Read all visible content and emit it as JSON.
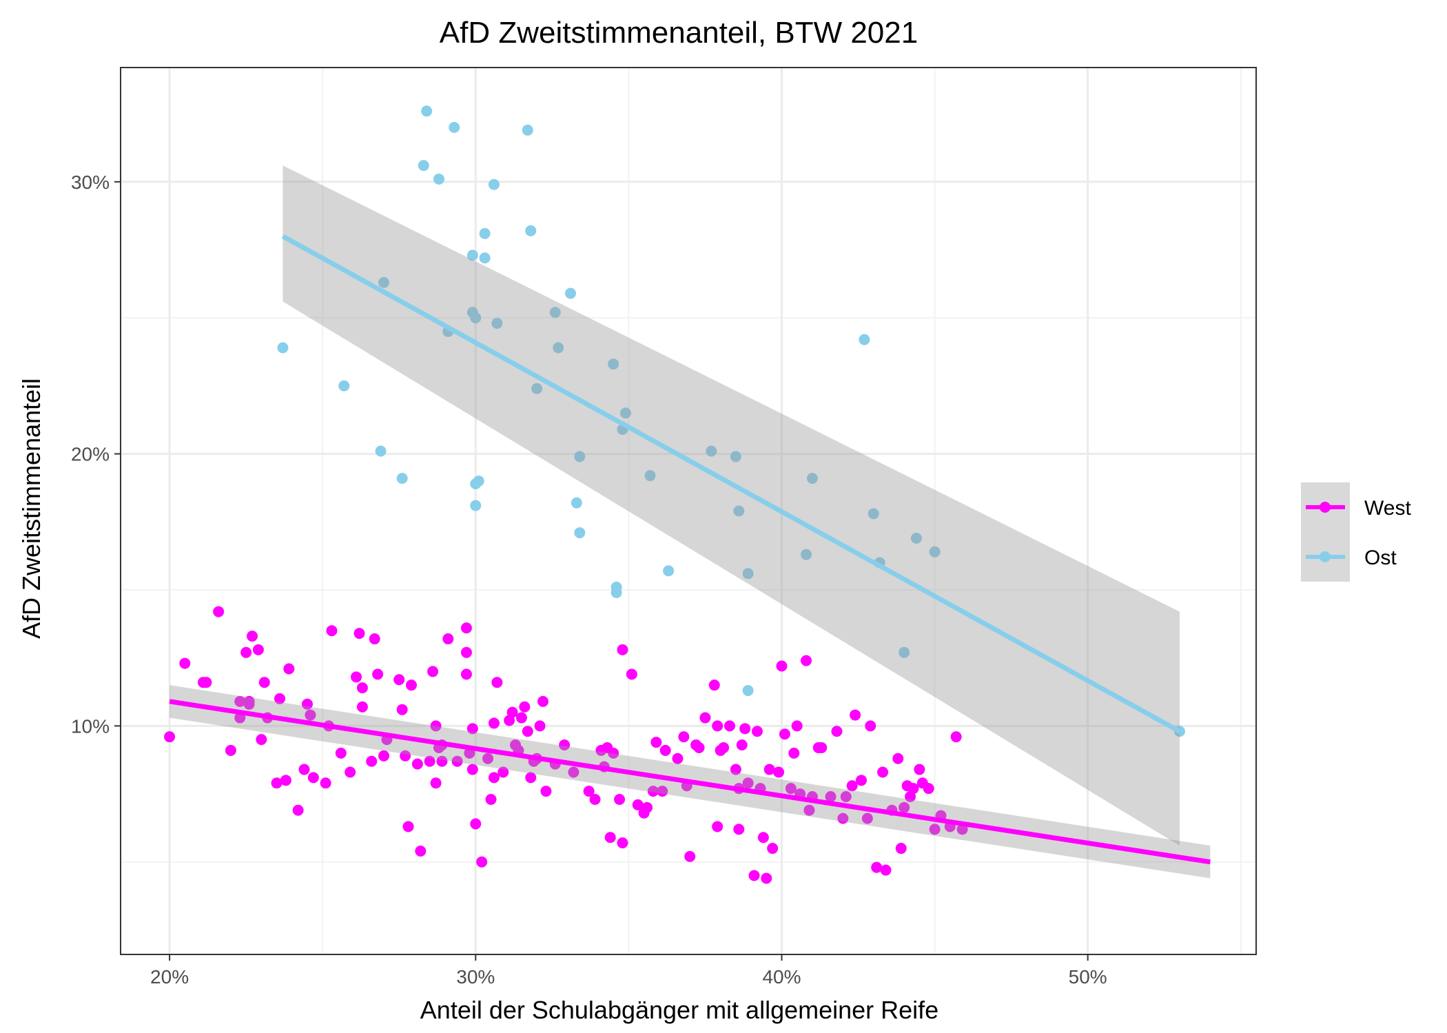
{
  "chart_data": {
    "type": "scatter",
    "title": "AfD Zweitstimmenanteil, BTW 2021",
    "xlabel": "Anteil der Schulabgänger mit allgemeiner Reife",
    "ylabel": "AfD Zweitstimmenanteil",
    "xlim": [
      18.4,
      55.5
    ],
    "ylim": [
      1.6,
      34.2
    ],
    "x_ticks": [
      20,
      30,
      40,
      50
    ],
    "x_tick_labels": [
      "20%",
      "30%",
      "40%",
      "50%"
    ],
    "y_ticks": [
      10,
      20,
      30
    ],
    "y_tick_labels": [
      "10%",
      "20%",
      "30%"
    ],
    "grid": true,
    "legend_position": "right",
    "colors": {
      "West": "#ff00ff",
      "Ost": "#87ceeb",
      "band": "#999999"
    },
    "series": [
      {
        "name": "West",
        "color": "#ff00ff",
        "trend": {
          "x": [
            20,
            54
          ],
          "y": [
            10.9,
            5.0
          ],
          "lower": [
            10.3,
            4.4
          ],
          "upper": [
            11.5,
            5.6
          ]
        },
        "points": [
          [
            20,
            9.6
          ],
          [
            20.5,
            12.3
          ],
          [
            21.1,
            11.6
          ],
          [
            21.2,
            11.6
          ],
          [
            21.6,
            14.2
          ],
          [
            22,
            9.1
          ],
          [
            22.3,
            10.9
          ],
          [
            22.3,
            10.3
          ],
          [
            22.5,
            12.7
          ],
          [
            22.6,
            10.9
          ],
          [
            22.6,
            10.8
          ],
          [
            22.7,
            13.3
          ],
          [
            22.9,
            12.8
          ],
          [
            23,
            9.5
          ],
          [
            23.1,
            11.6
          ],
          [
            23.2,
            10.3
          ],
          [
            23.5,
            7.9
          ],
          [
            23.6,
            11
          ],
          [
            23.8,
            8
          ],
          [
            23.9,
            12.1
          ],
          [
            24.2,
            6.9
          ],
          [
            24.4,
            8.4
          ],
          [
            24.5,
            10.8
          ],
          [
            24.6,
            10.4
          ],
          [
            24.7,
            8.1
          ],
          [
            25.1,
            7.9
          ],
          [
            25.2,
            10
          ],
          [
            25.3,
            13.5
          ],
          [
            25.6,
            9
          ],
          [
            25.9,
            8.3
          ],
          [
            26.1,
            11.8
          ],
          [
            26.2,
            13.4
          ],
          [
            26.3,
            10.7
          ],
          [
            26.3,
            11.4
          ],
          [
            26.6,
            8.7
          ],
          [
            26.7,
            13.2
          ],
          [
            26.8,
            11.9
          ],
          [
            27,
            8.9
          ],
          [
            27.1,
            9.5
          ],
          [
            27.5,
            11.7
          ],
          [
            27.6,
            10.6
          ],
          [
            27.7,
            8.9
          ],
          [
            27.8,
            6.3
          ],
          [
            27.9,
            11.5
          ],
          [
            28.1,
            8.6
          ],
          [
            28.2,
            5.4
          ],
          [
            28.5,
            8.7
          ],
          [
            28.6,
            12
          ],
          [
            28.7,
            7.9
          ],
          [
            28.7,
            10
          ],
          [
            28.8,
            9.2
          ],
          [
            28.9,
            8.7
          ],
          [
            28.9,
            9.3
          ],
          [
            29.1,
            13.2
          ],
          [
            29.4,
            8.7
          ],
          [
            29.7,
            12.7
          ],
          [
            29.7,
            11.9
          ],
          [
            29.7,
            13.6
          ],
          [
            29.8,
            9
          ],
          [
            29.9,
            9.9
          ],
          [
            29.9,
            8.4
          ],
          [
            30,
            6.4
          ],
          [
            30.2,
            5.0
          ],
          [
            30.4,
            8.8
          ],
          [
            30.5,
            7.3
          ],
          [
            30.6,
            8.1
          ],
          [
            30.6,
            10.1
          ],
          [
            30.7,
            11.6
          ],
          [
            30.9,
            8.3
          ],
          [
            31.1,
            10.2
          ],
          [
            31.2,
            10.5
          ],
          [
            31.3,
            9.3
          ],
          [
            31.4,
            9.1
          ],
          [
            31.5,
            10.3
          ],
          [
            31.6,
            10.7
          ],
          [
            31.7,
            9.8
          ],
          [
            31.8,
            8.1
          ],
          [
            31.9,
            8.7
          ],
          [
            32,
            8.8
          ],
          [
            32.1,
            10
          ],
          [
            32.2,
            10.9
          ],
          [
            32.3,
            7.6
          ],
          [
            32.6,
            8.6
          ],
          [
            32.9,
            9.3
          ],
          [
            33.2,
            8.3
          ],
          [
            33.7,
            7.6
          ],
          [
            33.9,
            7.3
          ],
          [
            34.1,
            9.1
          ],
          [
            34.2,
            8.5
          ],
          [
            34.3,
            9.2
          ],
          [
            34.4,
            5.9
          ],
          [
            34.5,
            9
          ],
          [
            34.7,
            7.3
          ],
          [
            34.8,
            12.8
          ],
          [
            34.8,
            5.7
          ],
          [
            35.1,
            11.9
          ],
          [
            35.3,
            7.1
          ],
          [
            35.5,
            6.8
          ],
          [
            35.6,
            7.0
          ],
          [
            35.8,
            7.6
          ],
          [
            35.9,
            9.4
          ],
          [
            36.1,
            7.6
          ],
          [
            36.2,
            9.1
          ],
          [
            36.6,
            8.8
          ],
          [
            36.8,
            9.6
          ],
          [
            36.9,
            7.8
          ],
          [
            37.0,
            5.2
          ],
          [
            37.2,
            9.3
          ],
          [
            37.3,
            9.2
          ],
          [
            37.5,
            10.3
          ],
          [
            37.8,
            11.5
          ],
          [
            37.9,
            6.3
          ],
          [
            37.9,
            10
          ],
          [
            38.0,
            9.1
          ],
          [
            38.1,
            9.2
          ],
          [
            38.3,
            10
          ],
          [
            38.5,
            8.4
          ],
          [
            38.6,
            7.7
          ],
          [
            38.6,
            6.2
          ],
          [
            38.7,
            9.3
          ],
          [
            38.8,
            9.9
          ],
          [
            38.9,
            7.9
          ],
          [
            39.1,
            4.5
          ],
          [
            39.2,
            9.8
          ],
          [
            39.3,
            7.7
          ],
          [
            39.4,
            5.9
          ],
          [
            39.5,
            4.4
          ],
          [
            39.6,
            8.4
          ],
          [
            39.7,
            5.5
          ],
          [
            39.9,
            8.3
          ],
          [
            40.0,
            12.2
          ],
          [
            40.1,
            9.7
          ],
          [
            40.3,
            7.7
          ],
          [
            40.4,
            9.0
          ],
          [
            40.5,
            10.0
          ],
          [
            40.6,
            7.5
          ],
          [
            40.8,
            12.4
          ],
          [
            40.9,
            6.9
          ],
          [
            41.0,
            7.4
          ],
          [
            41.2,
            9.2
          ],
          [
            41.3,
            9.2
          ],
          [
            41.6,
            7.4
          ],
          [
            41.8,
            9.8
          ],
          [
            42.0,
            6.6
          ],
          [
            42.1,
            7.4
          ],
          [
            42.3,
            7.8
          ],
          [
            42.4,
            10.4
          ],
          [
            42.6,
            8.0
          ],
          [
            42.8,
            6.6
          ],
          [
            42.9,
            10.0
          ],
          [
            43.1,
            4.8
          ],
          [
            43.3,
            8.3
          ],
          [
            43.4,
            4.7
          ],
          [
            43.6,
            6.9
          ],
          [
            43.8,
            8.8
          ],
          [
            43.9,
            5.5
          ],
          [
            44.0,
            7.0
          ],
          [
            44.1,
            7.8
          ],
          [
            44.2,
            7.4
          ],
          [
            44.3,
            7.7
          ],
          [
            44.5,
            8.4
          ],
          [
            44.6,
            7.9
          ],
          [
            44.8,
            7.7
          ],
          [
            45.0,
            6.2
          ],
          [
            45.2,
            6.7
          ],
          [
            45.5,
            6.3
          ],
          [
            45.7,
            9.6
          ],
          [
            45.9,
            6.2
          ]
        ]
      },
      {
        "name": "Ost",
        "color": "#87ceeb",
        "trend": {
          "x": [
            23.7,
            53
          ],
          "y": [
            28.0,
            9.8
          ],
          "lower": [
            25.6,
            5.6
          ],
          "upper": [
            30.6,
            14.2
          ]
        },
        "points": [
          [
            23.7,
            23.9
          ],
          [
            25.7,
            22.5
          ],
          [
            26.9,
            20.1
          ],
          [
            27.0,
            26.3
          ],
          [
            27.6,
            19.1
          ],
          [
            28.3,
            30.6
          ],
          [
            28.4,
            32.6
          ],
          [
            28.8,
            30.1
          ],
          [
            29.1,
            24.5
          ],
          [
            29.3,
            32.0
          ],
          [
            29.9,
            27.3
          ],
          [
            29.9,
            25.2
          ],
          [
            30.0,
            25.0
          ],
          [
            30.0,
            18.1
          ],
          [
            30.0,
            18.9
          ],
          [
            30.1,
            19.0
          ],
          [
            30.3,
            27.2
          ],
          [
            30.3,
            28.1
          ],
          [
            30.6,
            29.9
          ],
          [
            30.7,
            24.8
          ],
          [
            31.7,
            31.9
          ],
          [
            31.8,
            28.2
          ],
          [
            32.0,
            22.4
          ],
          [
            32.6,
            25.2
          ],
          [
            32.7,
            23.9
          ],
          [
            33.1,
            25.9
          ],
          [
            33.3,
            18.2
          ],
          [
            33.4,
            17.1
          ],
          [
            33.4,
            19.9
          ],
          [
            34.5,
            23.3
          ],
          [
            34.6,
            15.1
          ],
          [
            34.6,
            14.9
          ],
          [
            34.8,
            20.9
          ],
          [
            34.9,
            21.5
          ],
          [
            35.7,
            19.2
          ],
          [
            36.3,
            15.7
          ],
          [
            37.7,
            20.1
          ],
          [
            38.5,
            19.9
          ],
          [
            38.6,
            17.9
          ],
          [
            38.9,
            15.6
          ],
          [
            38.9,
            11.3
          ],
          [
            40.8,
            16.3
          ],
          [
            41.0,
            19.1
          ],
          [
            42.7,
            24.2
          ],
          [
            43.0,
            17.8
          ],
          [
            43.2,
            16.0
          ],
          [
            44.0,
            12.7
          ],
          [
            44.4,
            16.9
          ],
          [
            45.0,
            16.4
          ],
          [
            53.0,
            9.8
          ]
        ]
      }
    ]
  }
}
